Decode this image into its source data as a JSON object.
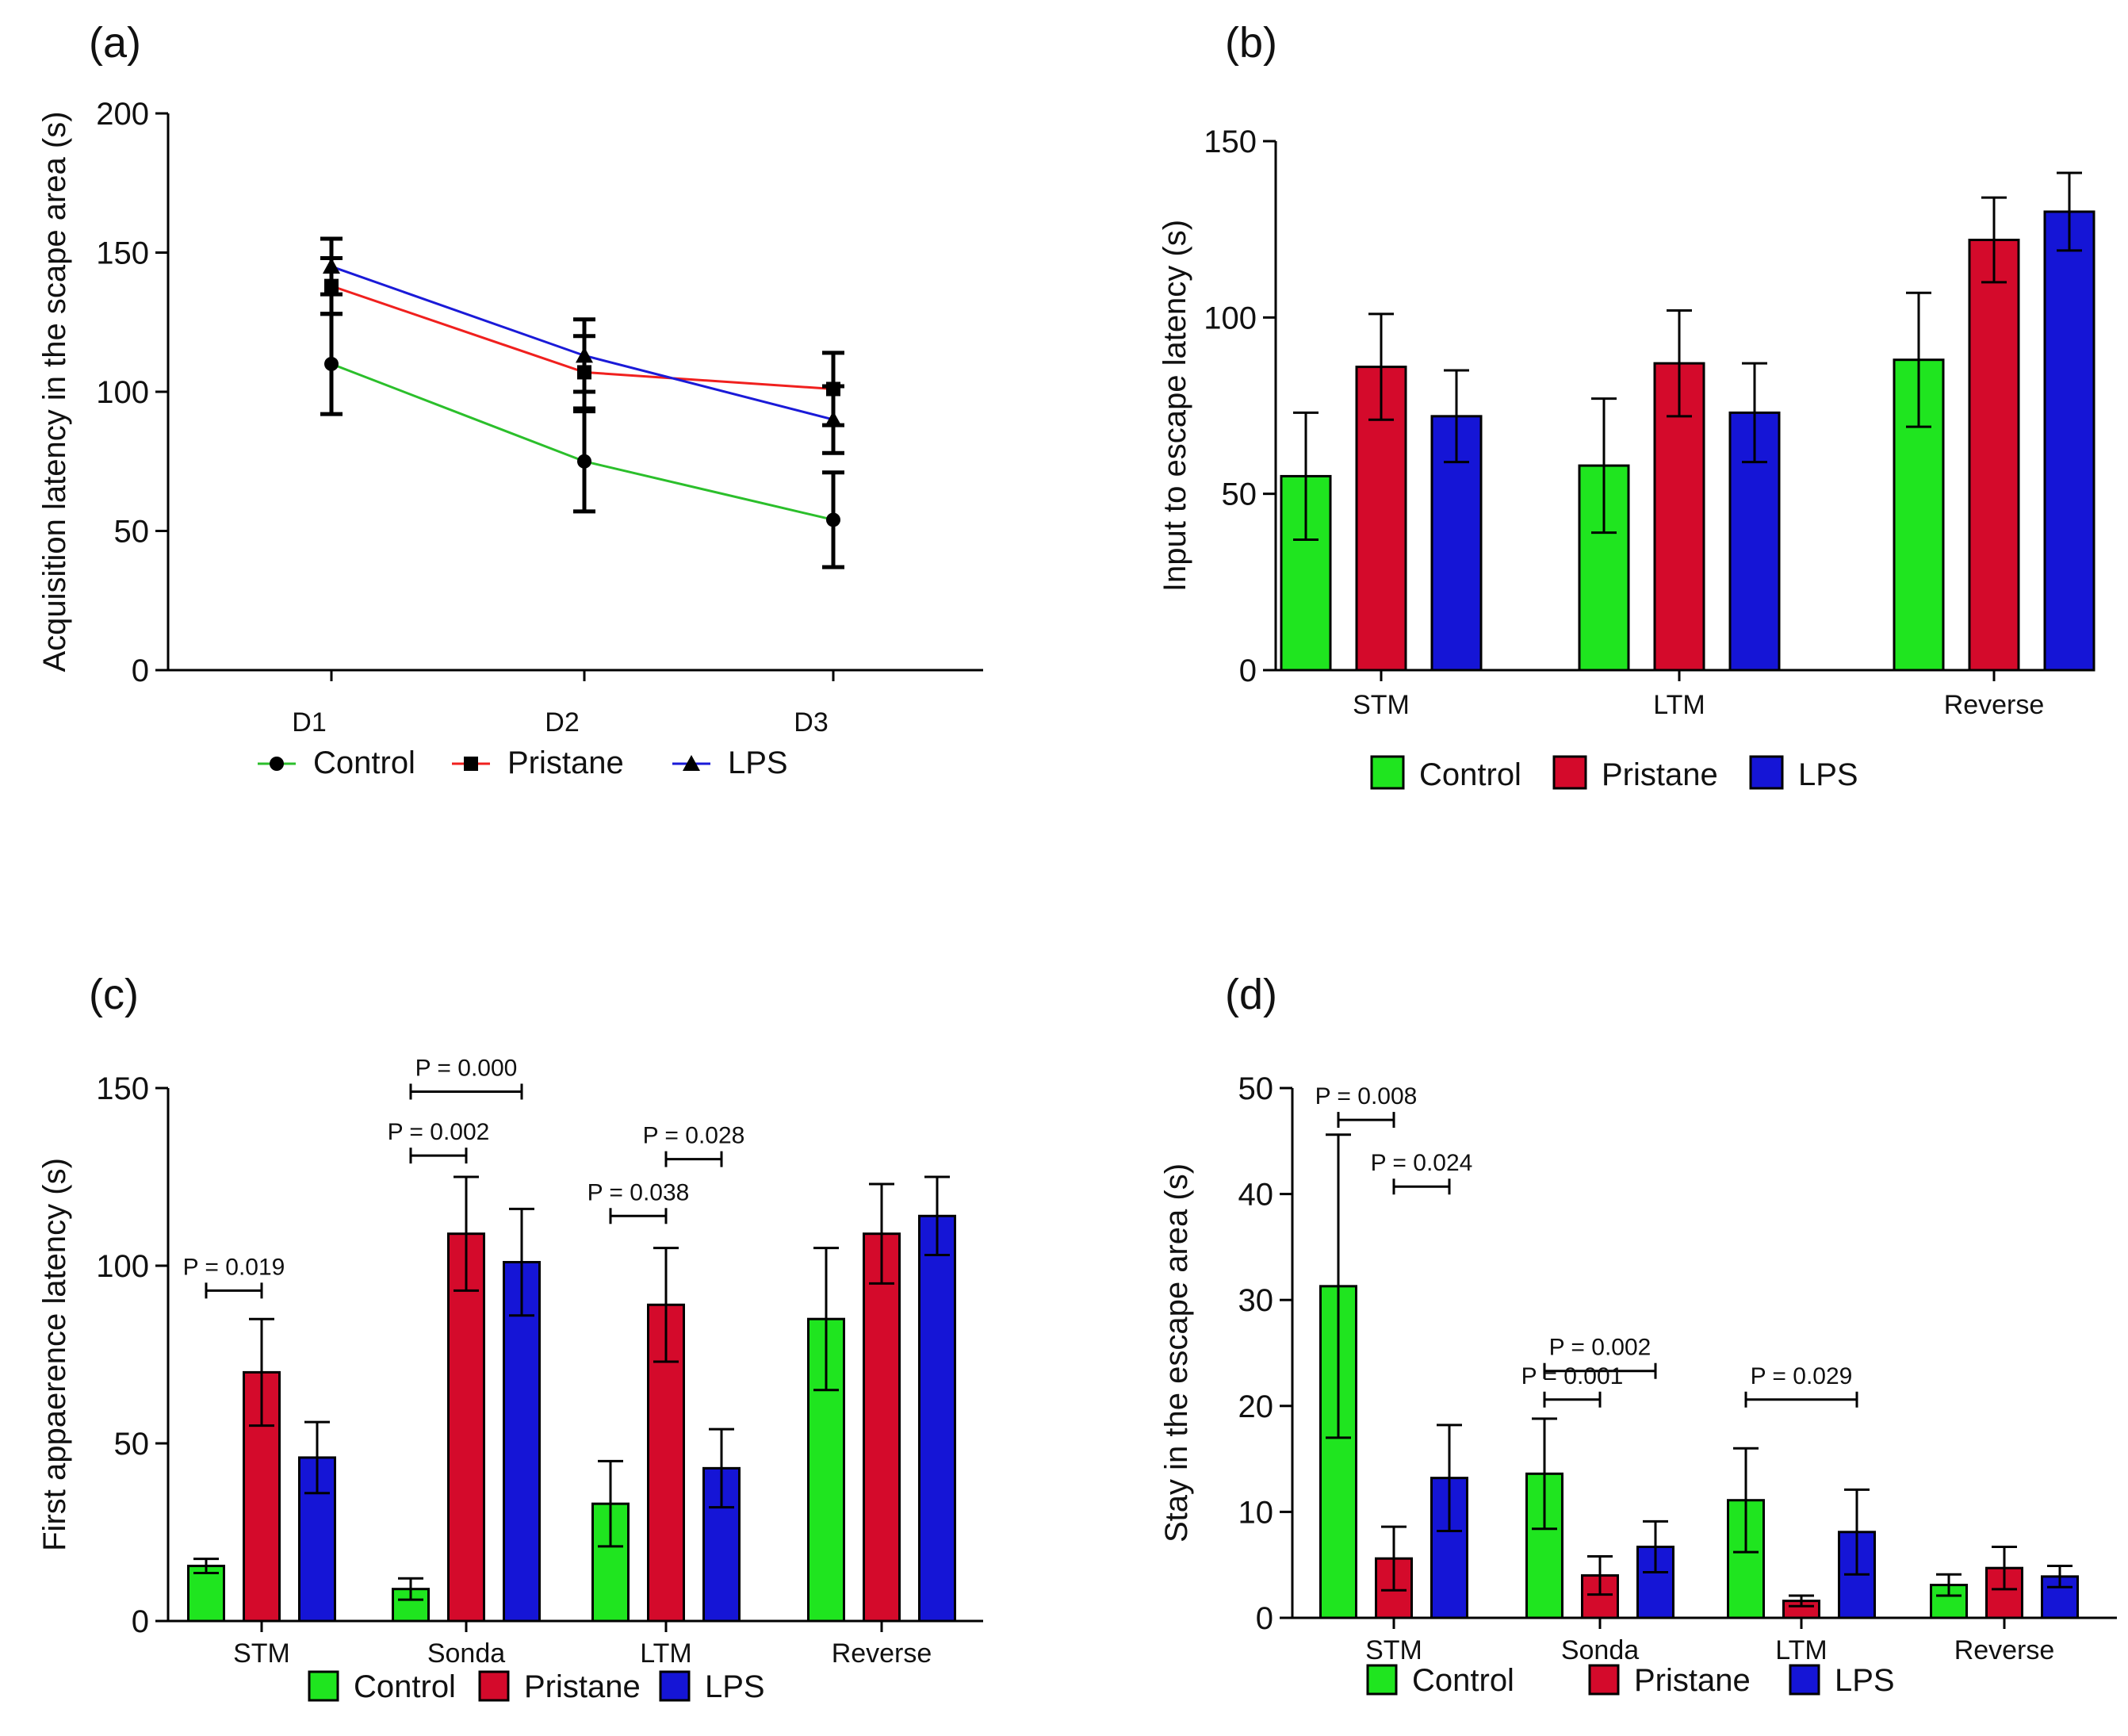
{
  "colors": {
    "Control": "#1fe51f",
    "Pristane": "#d40a2b",
    "LPS": "#1515d6",
    "Control_line": "#2bbf2b",
    "Pristane_line": "#f0201e",
    "LPS_line": "#1a1ad8"
  },
  "chart_data": [
    {
      "panel": "(a)",
      "type": "line",
      "title": "",
      "xlabel": "",
      "ylabel": "Acquisition latency in the scape area (s)",
      "categories": [
        "D1",
        "D2",
        "D3"
      ],
      "ylim": [
        0,
        200
      ],
      "yticks": [
        "0",
        "50",
        "100",
        "150",
        "200"
      ],
      "series": [
        {
          "name": "Control",
          "marker": "circle",
          "values": [
            110,
            75,
            54
          ],
          "errors": [
            18,
            18,
            17
          ]
        },
        {
          "name": "Pristane",
          "marker": "square",
          "values": [
            138,
            107,
            101
          ],
          "errors": [
            10,
            13,
            13
          ]
        },
        {
          "name": "LPS",
          "marker": "triangle",
          "values": [
            145,
            113,
            90
          ],
          "errors": [
            10,
            13,
            12
          ]
        }
      ],
      "legend": [
        "Control",
        "Pristane",
        "LPS"
      ],
      "legend_position": "bottom"
    },
    {
      "panel": "(b)",
      "type": "bar",
      "title": "",
      "xlabel": "",
      "ylabel": "Input to escape latency (s)",
      "categories": [
        "STM",
        "LTM",
        "Reverse"
      ],
      "ylim": [
        0,
        150
      ],
      "yticks": [
        "0",
        "50",
        "100",
        "150"
      ],
      "series": [
        {
          "name": "Control",
          "values": [
            55,
            58,
            88
          ],
          "errors": [
            18,
            19,
            19
          ]
        },
        {
          "name": "Pristane",
          "values": [
            86,
            87,
            122
          ],
          "errors": [
            15,
            15,
            12
          ]
        },
        {
          "name": "LPS",
          "values": [
            72,
            73,
            130
          ],
          "errors": [
            13,
            14,
            11
          ]
        }
      ],
      "legend": [
        "Control",
        "Pristane",
        "LPS"
      ],
      "legend_position": "bottom"
    },
    {
      "panel": "(c)",
      "type": "bar",
      "title": "",
      "xlabel": "",
      "ylabel": "First appaerence latency (s)",
      "categories": [
        "STM",
        "Sonda",
        "LTM",
        "Reverse"
      ],
      "ylim": [
        0,
        150
      ],
      "yticks": [
        "0",
        "50",
        "100",
        "150"
      ],
      "series": [
        {
          "name": "Control",
          "values": [
            15.5,
            9,
            33,
            85
          ],
          "errors": [
            2,
            3,
            12,
            20
          ]
        },
        {
          "name": "Pristane",
          "values": [
            70,
            109,
            89,
            109
          ],
          "errors": [
            15,
            16,
            16,
            14
          ]
        },
        {
          "name": "LPS",
          "values": [
            46,
            101,
            43,
            114
          ],
          "errors": [
            10,
            15,
            11,
            11
          ]
        }
      ],
      "annotations": [
        {
          "text": "P = 0.019",
          "category": "STM",
          "from": "Control",
          "to": "Pristane",
          "y": 93
        },
        {
          "text": "P = 0.002",
          "category": "Sonda",
          "from": "Control",
          "to": "Pristane",
          "y": 131
        },
        {
          "text": "P = 0.000",
          "category": "Sonda",
          "from": "Control",
          "to": "LPS",
          "y": 149
        },
        {
          "text": "P = 0.038",
          "category": "LTM",
          "from": "Control",
          "to": "Pristane",
          "y": 114
        },
        {
          "text": "P = 0.028",
          "category": "LTM",
          "from": "Pristane",
          "to": "LPS",
          "y": 130
        }
      ],
      "legend": [
        "Control",
        "Pristane",
        "LPS"
      ],
      "legend_position": "bottom"
    },
    {
      "panel": "(d)",
      "type": "bar",
      "title": "",
      "xlabel": "",
      "ylabel": "Stay in the escape area (s)",
      "categories": [
        "STM",
        "Sonda",
        "LTM",
        "Reverse"
      ],
      "ylim": [
        0,
        50
      ],
      "yticks": [
        "0",
        "10",
        "20",
        "30",
        "40",
        "50"
      ],
      "series": [
        {
          "name": "Control",
          "values": [
            31.3,
            13.6,
            11.1,
            3.1
          ],
          "errors": [
            14.3,
            5.2,
            4.9,
            1.0
          ]
        },
        {
          "name": "Pristane",
          "values": [
            5.6,
            4.0,
            1.6,
            4.7
          ],
          "errors": [
            3.0,
            1.8,
            0.5,
            2.0
          ]
        },
        {
          "name": "LPS",
          "values": [
            13.2,
            6.7,
            8.1,
            3.9
          ],
          "errors": [
            5.0,
            2.4,
            4.0,
            1.0
          ]
        }
      ],
      "annotations": [
        {
          "text": "P = 0.008",
          "category": "STM",
          "from": "Control",
          "to": "Pristane",
          "y": 47
        },
        {
          "text": "P = 0.024",
          "category": "STM",
          "from": "Pristane",
          "to": "LPS",
          "y": 40.7
        },
        {
          "text": "P = 0.002",
          "category": "Sonda",
          "from": "Control",
          "to": "LPS",
          "y": 23.3
        },
        {
          "text": "P = 0.001",
          "category": "Sonda",
          "from": "Control",
          "to": "Pristane",
          "y": 20.6
        },
        {
          "text": "P = 0.029",
          "category": "LTM",
          "from": "Control",
          "to": "LPS",
          "y": 20.6
        }
      ],
      "legend": [
        "Control",
        "Pristane",
        "LPS"
      ],
      "legend_position": "bottom"
    }
  ]
}
